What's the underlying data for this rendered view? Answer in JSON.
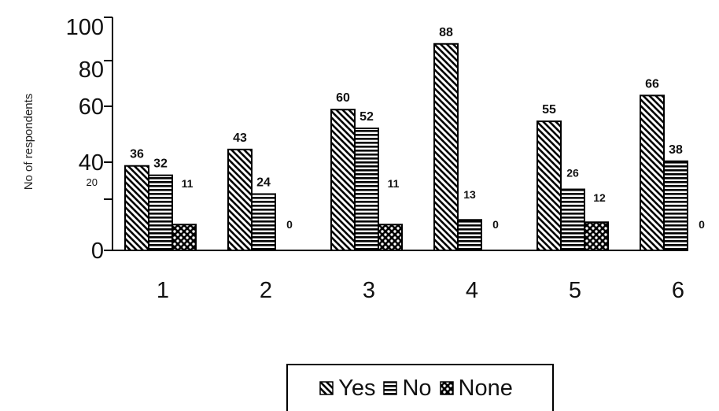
{
  "chart_data": {
    "type": "bar",
    "title": "",
    "xlabel": "",
    "ylabel": "No of respondents",
    "ylim": [
      0,
      100
    ],
    "y_tick_labels": [
      {
        "value": 0,
        "label": "0"
      },
      {
        "value": 20,
        "label": "20"
      },
      {
        "value": 40,
        "label": "40"
      },
      {
        "value": 60,
        "label": "60"
      },
      {
        "value": 80,
        "label": "80"
      },
      {
        "value": 100,
        "label": "100"
      }
    ],
    "categories": [
      "1",
      "2",
      "3",
      "4",
      "5",
      "6"
    ],
    "series": [
      {
        "name": "Yes",
        "values": [
          36,
          43,
          60,
          88,
          55,
          66
        ],
        "pattern": "diagonal"
      },
      {
        "name": "No",
        "values": [
          32,
          24,
          52,
          13,
          26,
          38
        ],
        "pattern": "horizontal"
      },
      {
        "name": "None",
        "values": [
          11,
          0,
          11,
          0,
          12,
          0
        ],
        "pattern": "checker"
      }
    ],
    "legend_position": "bottom-center",
    "grid": false
  },
  "colors": {
    "ink": "#000000",
    "background": "#ffffff"
  }
}
